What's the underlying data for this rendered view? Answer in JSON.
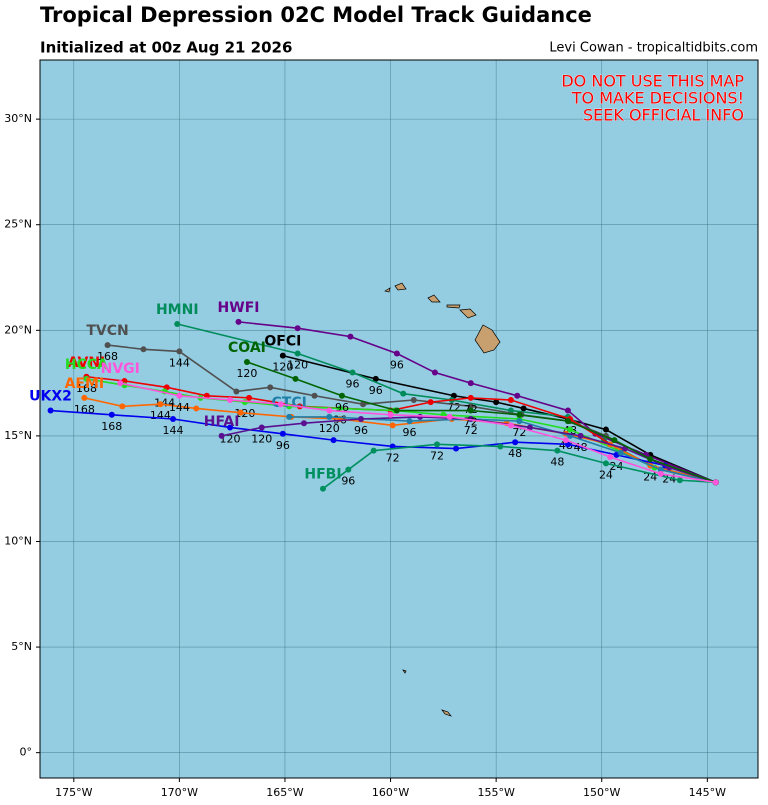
{
  "chart_data": {
    "type": "track",
    "title": "Tropical Depression 02C Model Track Guidance",
    "subtitle": "Initialized at 00z Aug 21 2026",
    "credit": "Levi Cowan - tropicaltidbits.com",
    "warning": [
      "DO NOT USE THIS MAP",
      "TO MAKE DECISIONS!",
      "SEEK OFFICIAL INFO"
    ],
    "warning_color": "#ff0000",
    "background": "#94cde2",
    "grid": true,
    "xlim": [
      -176.6,
      -142.6
    ],
    "ylim": [
      -1.2,
      32.8
    ],
    "xticks": [
      {
        "value": -175,
        "label": "175°W"
      },
      {
        "value": -170,
        "label": "170°W"
      },
      {
        "value": -165,
        "label": "165°W"
      },
      {
        "value": -160,
        "label": "160°W"
      },
      {
        "value": -155,
        "label": "155°W"
      },
      {
        "value": -150,
        "label": "150°W"
      },
      {
        "value": -145,
        "label": "145°W"
      }
    ],
    "yticks": [
      {
        "value": 0,
        "label": "0°"
      },
      {
        "value": 5,
        "label": "5°N"
      },
      {
        "value": 10,
        "label": "10°N"
      },
      {
        "value": 15,
        "label": "15°N"
      },
      {
        "value": 20,
        "label": "20°N"
      },
      {
        "value": 25,
        "label": "25°N"
      },
      {
        "value": 30,
        "label": "30°N"
      }
    ],
    "series": [
      {
        "name": "OFCI",
        "color": "#000000",
        "x": [
          -144.6,
          -147.7,
          -149.8,
          -151.6,
          -153.7,
          -155.0,
          -157.0,
          -160.7,
          -165.1
        ],
        "y": [
          12.8,
          14.1,
          15.3,
          15.8,
          16.3,
          16.6,
          16.9,
          17.7,
          18.8
        ],
        "hours": [
          null,
          null,
          null,
          null,
          null,
          null,
          "72",
          "96",
          "120"
        ]
      },
      {
        "name": "HWFI",
        "color": "#660088",
        "x": [
          -144.6,
          -147.9,
          -150.3,
          -151.6,
          -154.0,
          -156.2,
          -157.9,
          -159.7,
          -161.9,
          -164.4,
          -167.2
        ],
        "y": [
          12.8,
          14.1,
          15.1,
          16.2,
          16.9,
          17.5,
          18.0,
          18.9,
          19.7,
          20.1,
          20.4
        ],
        "hours": [
          null,
          null,
          null,
          null,
          null,
          null,
          null,
          "96",
          null,
          null,
          null
        ]
      },
      {
        "name": "HMNI",
        "color": "#008c5a",
        "x": [
          -144.6,
          -147.7,
          -149.9,
          -151.6,
          -154.3,
          -157.1,
          -159.4,
          -161.8,
          -164.4,
          -170.1
        ],
        "y": [
          12.8,
          13.6,
          14.8,
          15.9,
          16.2,
          16.7,
          17.0,
          18.0,
          18.9,
          20.3
        ],
        "hours": [
          null,
          "24",
          null,
          null,
          null,
          null,
          null,
          "96",
          "120",
          null
        ]
      },
      {
        "name": "TVCN",
        "color": "#505050",
        "x": [
          -144.6,
          -147.7,
          -149.8,
          -151.5,
          -153.8,
          -156.2,
          -158.9,
          -161.3,
          -163.6,
          -165.7,
          -167.3,
          -170.0,
          -171.7,
          -173.4
        ],
        "y": [
          12.8,
          13.9,
          15.0,
          15.7,
          16.0,
          16.4,
          16.7,
          16.5,
          16.9,
          17.3,
          17.1,
          19.0,
          19.1,
          19.3
        ],
        "hours": [
          null,
          null,
          null,
          null,
          null,
          null,
          null,
          null,
          null,
          null,
          null,
          "144",
          null,
          "168"
        ]
      },
      {
        "name": "AVNI",
        "color": "#ee0000",
        "x": [
          -144.6,
          -147.2,
          -149.1,
          -151.5,
          -154.3,
          -156.2,
          -158.1,
          -160.0,
          -164.3,
          -166.7,
          -168.7,
          -170.6,
          -172.6,
          -174.4
        ],
        "y": [
          12.8,
          13.4,
          14.3,
          15.8,
          16.7,
          16.8,
          16.6,
          16.2,
          16.4,
          16.8,
          16.9,
          17.3,
          17.6,
          17.8
        ],
        "hours": [
          null,
          null,
          null,
          "48",
          null,
          "72",
          null,
          null,
          null,
          null,
          null,
          null,
          null,
          "168"
        ]
      },
      {
        "name": "HCCA",
        "color": "#22dd22",
        "x": [
          -144.6,
          -147.5,
          -149.2,
          -151.5,
          -153.9,
          -157.5,
          -159.8,
          -162.4,
          -164.8,
          -166.9,
          -169.0,
          -170.7,
          -172.6,
          -174.4
        ],
        "y": [
          12.8,
          13.5,
          14.3,
          15.3,
          15.8,
          16.0,
          16.2,
          16.3,
          16.4,
          16.6,
          16.8,
          17.1,
          17.4,
          17.7
        ],
        "hours": [
          null,
          null,
          null,
          null,
          null,
          null,
          null,
          "96",
          null,
          "120",
          null,
          "144",
          null,
          null
        ]
      },
      {
        "name": "AEMI",
        "color": "#ff6600",
        "x": [
          -144.6,
          -147.7,
          -149.6,
          -151.7,
          -154.5,
          -157.1,
          -159.9,
          -162.4,
          -164.7,
          -167.1,
          -169.2,
          -170.9,
          -172.7,
          -174.5
        ],
        "y": [
          12.8,
          13.6,
          14.6,
          15.1,
          15.6,
          15.8,
          15.5,
          15.8,
          15.9,
          16.1,
          16.3,
          16.5,
          16.4,
          16.8
        ],
        "hours": [
          null,
          null,
          null,
          "48",
          null,
          null,
          null,
          null,
          null,
          null,
          null,
          "144",
          null,
          "168"
        ]
      },
      {
        "name": "UKX2",
        "color": "#0000ee",
        "x": [
          -144.6,
          -147.0,
          -149.3,
          -151.6,
          -154.1,
          -156.9,
          -159.9,
          -162.7,
          -165.1,
          -167.6,
          -170.3,
          -173.2,
          -176.1
        ],
        "y": [
          12.8,
          13.6,
          14.1,
          14.6,
          14.7,
          14.4,
          14.5,
          14.8,
          15.1,
          15.4,
          15.8,
          16.0,
          16.2
        ],
        "hours": [
          null,
          null,
          "24",
          null,
          "48",
          null,
          "72",
          null,
          "96",
          "120",
          "144",
          "168",
          null
        ]
      },
      {
        "name": "CTCI",
        "color": "#1f7fa8",
        "x": [
          -144.6,
          -147.2,
          -149.1,
          -151.5,
          -153.9,
          -156.2,
          -159.1,
          -162.9,
          -164.8
        ],
        "y": [
          12.8,
          13.4,
          14.2,
          15.0,
          15.7,
          15.8,
          15.7,
          15.9,
          15.9
        ],
        "hours": [
          null,
          null,
          null,
          null,
          "72",
          null,
          "96",
          "120",
          null
        ]
      },
      {
        "name": "HFAI",
        "color": "#5a1090",
        "x": [
          -144.6,
          -146.8,
          -148.9,
          -151.0,
          -153.4,
          -156.2,
          -158.6,
          -161.4,
          -164.1,
          -166.1,
          -168.0
        ],
        "y": [
          12.8,
          13.5,
          14.4,
          15.0,
          15.4,
          15.8,
          15.9,
          15.8,
          15.6,
          15.4,
          15.0
        ],
        "hours": [
          null,
          "24",
          null,
          "48",
          null,
          "72",
          null,
          "96",
          null,
          "120",
          null
        ]
      },
      {
        "name": "HFBI",
        "color": "#009060",
        "x": [
          -144.6,
          -146.3,
          -149.8,
          -152.1,
          -154.8,
          -157.8,
          -160.8,
          -162.0,
          -163.2
        ],
        "y": [
          12.8,
          12.9,
          13.7,
          14.3,
          14.5,
          14.6,
          14.3,
          13.4,
          12.5
        ],
        "hours": [
          null,
          null,
          "24",
          "48",
          null,
          "72",
          null,
          "96",
          null
        ]
      },
      {
        "name": "COAI",
        "color": "#006400",
        "x": [
          -144.6,
          -147.7,
          -149.4,
          -151.6,
          -153.9,
          -156.2,
          -159.7,
          -162.3,
          -164.5,
          -166.8
        ],
        "y": [
          12.8,
          13.9,
          14.8,
          15.7,
          16.0,
          16.2,
          16.2,
          16.9,
          17.7,
          18.5
        ],
        "hours": [
          null,
          null,
          null,
          null,
          null,
          "72",
          null,
          "96",
          null,
          "120"
        ]
      },
      {
        "name": "NVGI",
        "color": "#ff55dd",
        "x": [
          -144.6,
          -147.2,
          -149.6,
          -151.7,
          -154.3,
          -157.2,
          -160.0,
          -162.9,
          -165.2,
          -167.6,
          -170.0,
          -172.8
        ],
        "y": [
          12.8,
          13.2,
          14.0,
          14.8,
          15.5,
          15.9,
          16.0,
          16.2,
          16.5,
          16.7,
          16.9,
          17.5
        ],
        "hours": [
          null,
          null,
          null,
          null,
          null,
          null,
          null,
          null,
          null,
          null,
          "144",
          null
        ]
      }
    ]
  }
}
